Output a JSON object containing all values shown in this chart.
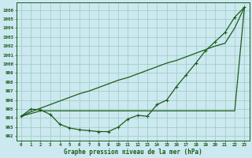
{
  "title": "Graphe pression niveau de la mer (hPa)",
  "bg_color": "#cce8f0",
  "grid_color": "#99ccbb",
  "line_color": "#1a5c1a",
  "x_labels": [
    "0",
    "1",
    "2",
    "3",
    "4",
    "5",
    "6",
    "7",
    "8",
    "9",
    "10",
    "11",
    "12",
    "13",
    "14",
    "15",
    "16",
    "17",
    "18",
    "19",
    "20",
    "21",
    "22",
    "23"
  ],
  "ylim": [
    991.5,
    1006.8
  ],
  "yticks": [
    992,
    993,
    994,
    995,
    996,
    997,
    998,
    999,
    1000,
    1001,
    1002,
    1003,
    1004,
    1005,
    1006
  ],
  "line_main": [
    994.2,
    995.0,
    994.9,
    994.4,
    993.3,
    992.9,
    992.7,
    992.6,
    992.5,
    992.5,
    993.0,
    993.9,
    994.3,
    994.2,
    995.5,
    996.0,
    997.5,
    998.8,
    1000.1,
    1001.5,
    1002.5,
    1003.5,
    1005.2,
    1006.3
  ],
  "line_straight1": [
    994.2,
    994.7,
    995.1,
    995.5,
    995.9,
    996.3,
    996.7,
    997.0,
    997.4,
    997.8,
    998.2,
    998.5,
    998.9,
    999.3,
    999.7,
    1000.1,
    1000.4,
    1000.8,
    1001.2,
    1001.6,
    1002.0,
    1002.3,
    1004.0,
    1006.3
  ],
  "line_straight2": [
    994.2,
    994.5,
    994.8,
    994.8,
    994.8,
    994.8,
    994.8,
    994.8,
    994.8,
    994.8,
    994.8,
    994.8,
    994.8,
    994.8,
    994.8,
    994.8,
    994.8,
    994.8,
    994.8,
    994.8,
    994.8,
    994.8,
    994.8,
    1006.3
  ]
}
